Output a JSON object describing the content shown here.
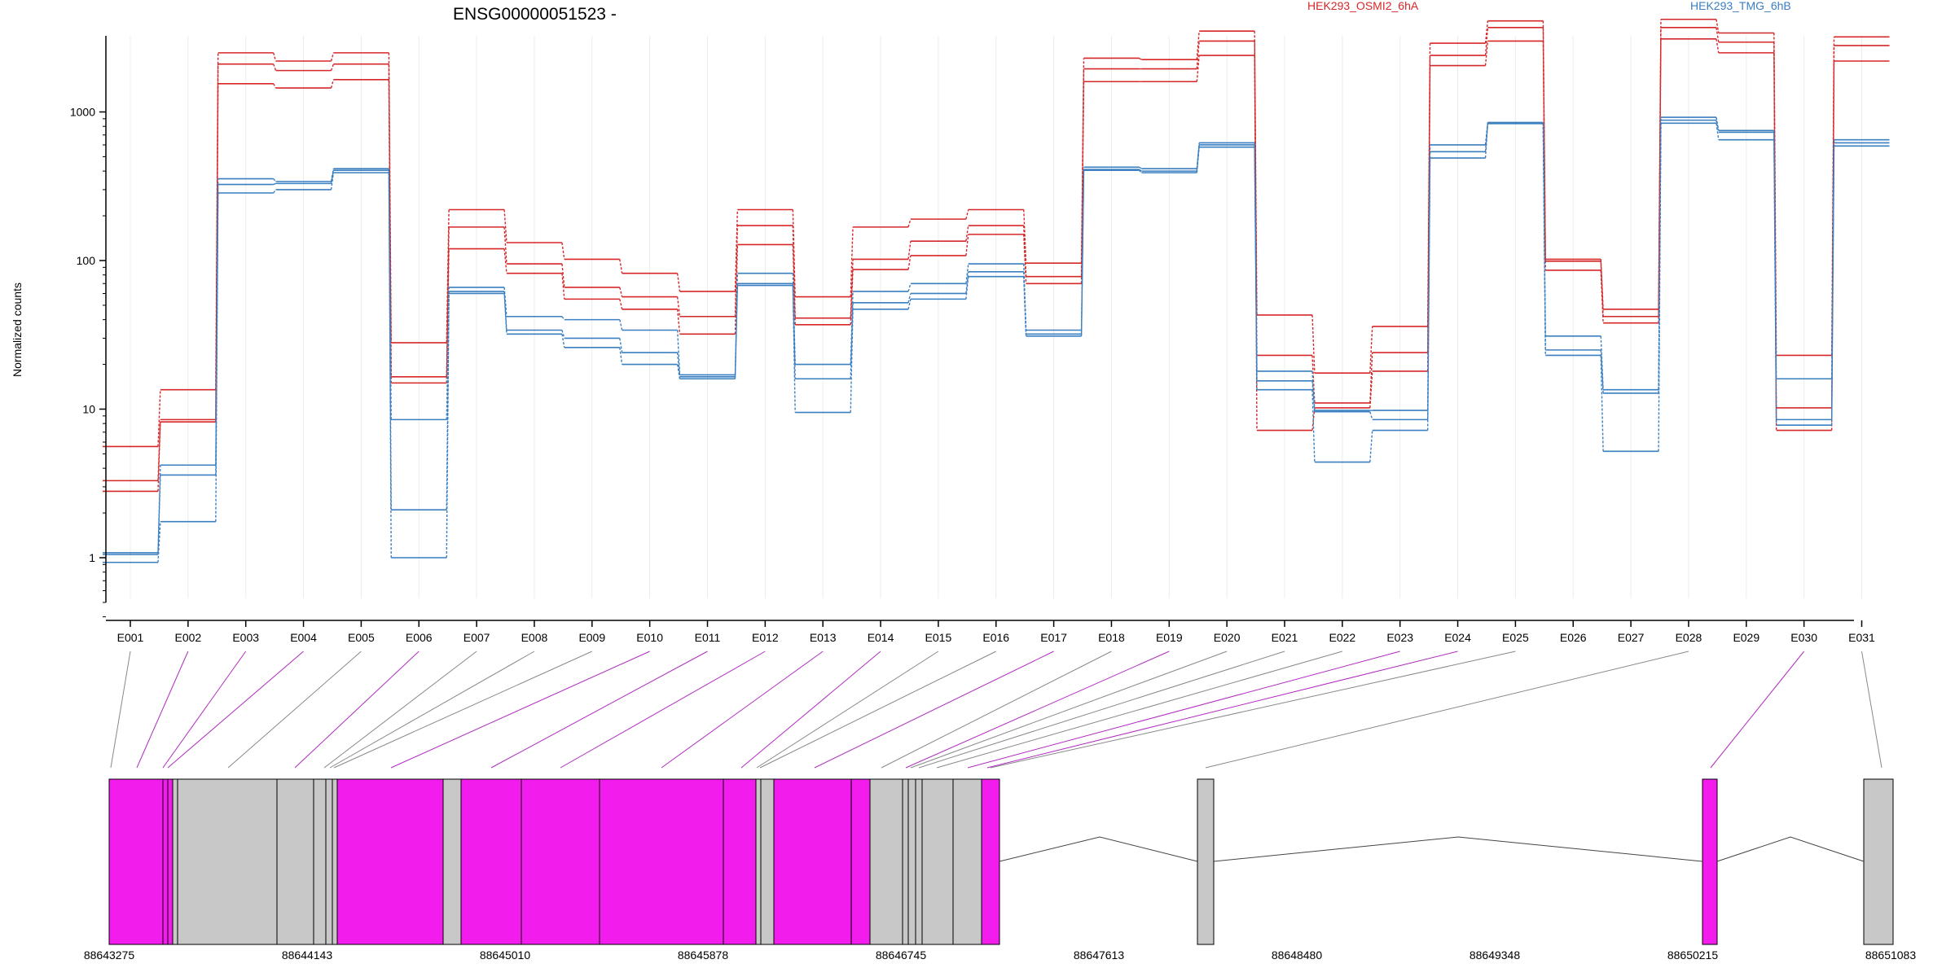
{
  "chart_data": {
    "type": "line",
    "title": "ENSG00000051523 -",
    "ylabel": "Normalized counts",
    "xlabel": "",
    "y_scale": "log",
    "ylim": [
      0.35,
      4500
    ],
    "y_ticks": [
      "1",
      "10",
      "100",
      "1000"
    ],
    "y_tick_values": [
      1,
      10,
      100,
      1000
    ],
    "categories": [
      "E001",
      "E002",
      "E003",
      "E004",
      "E005",
      "E006",
      "E007",
      "E008",
      "E009",
      "E010",
      "E011",
      "E012",
      "E013",
      "E014",
      "E015",
      "E016",
      "E017",
      "E018",
      "E019",
      "E020",
      "E021",
      "E022",
      "E023",
      "E024",
      "E025",
      "E026",
      "E027",
      "E028",
      "E029",
      "E030",
      "E031"
    ],
    "legend": [
      {
        "name": "HEK293_OSMI2_6hA",
        "color": "#d62728"
      },
      {
        "name": "HEK293_TMG_6hB",
        "color": "#3a7fc0"
      }
    ],
    "series": [
      {
        "name": "HEK293_OSMI2_6hA",
        "group": "HEK293_OSMI2_6hA",
        "color": "#d62728",
        "values": [
          5.6,
          13.5,
          2500,
          2200,
          2500,
          28,
          220,
          132,
          102,
          82,
          62,
          220,
          57,
          168,
          190,
          220,
          96,
          2300,
          2250,
          3500,
          43,
          17.5,
          36,
          2900,
          4100,
          102,
          47,
          4200,
          3400,
          23,
          3200
        ]
      },
      {
        "name": "HEK293_OSMI2_6hA",
        "group": "HEK293_OSMI2_6hA",
        "color": "#d62728",
        "values": [
          3.3,
          8.5,
          2100,
          1900,
          2100,
          16.5,
          168,
          95,
          66,
          57,
          42,
          172,
          41,
          102,
          135,
          172,
          78,
          1950,
          1950,
          3000,
          23,
          11,
          24,
          2400,
          3700,
          99,
          42,
          3700,
          2950,
          10.2,
          2800
        ]
      },
      {
        "name": "HEK293_OSMI2_6hA",
        "group": "HEK293_OSMI2_6hA",
        "color": "#d62728",
        "values": [
          2.8,
          8.2,
          1550,
          1450,
          1650,
          15,
          120,
          82,
          55,
          47,
          32,
          128,
          37,
          87,
          108,
          150,
          70,
          1600,
          1600,
          2400,
          7.2,
          10.2,
          18,
          2050,
          3000,
          86,
          38,
          3100,
          2500,
          7.2,
          2200
        ]
      },
      {
        "name": "HEK293_TMG_6hB",
        "group": "HEK293_TMG_6hB",
        "color": "#3a7fc0",
        "values": [
          1.08,
          4.2,
          355,
          340,
          415,
          8.5,
          66,
          42,
          40,
          34,
          17,
          82,
          20,
          62,
          70,
          95,
          34,
          425,
          415,
          620,
          18,
          9.8,
          9.8,
          600,
          850,
          31,
          13.5,
          920,
          750,
          16,
          650
        ]
      },
      {
        "name": "HEK293_TMG_6hB",
        "group": "HEK293_TMG_6hB",
        "color": "#3a7fc0",
        "values": [
          1.05,
          3.6,
          325,
          330,
          405,
          2.1,
          62,
          34,
          30,
          24,
          16.5,
          70,
          16,
          52,
          60,
          84,
          32,
          410,
          400,
          600,
          15.5,
          9.6,
          8.5,
          540,
          845,
          25,
          12.8,
          880,
          730,
          8.5,
          620
        ]
      },
      {
        "name": "HEK293_TMG_6hB",
        "group": "HEK293_TMG_6hB",
        "color": "#3a7fc0",
        "values": [
          0.93,
          1.75,
          285,
          300,
          390,
          1.0,
          60,
          32,
          26,
          20,
          16,
          68,
          9.5,
          47,
          55,
          78,
          31,
          405,
          390,
          580,
          13.5,
          4.4,
          7.2,
          490,
          835,
          23,
          5.2,
          840,
          650,
          7.8,
          590
        ]
      }
    ],
    "gene_model": {
      "axis_ticks": [
        "88643275",
        "88644143",
        "88645010",
        "88645878",
        "88646745",
        "88647613",
        "88648480",
        "88649348",
        "88650215",
        "88651083"
      ],
      "exon_colors": {
        "default": "#c8c8c8",
        "highlight": "#f21cec"
      }
    }
  }
}
